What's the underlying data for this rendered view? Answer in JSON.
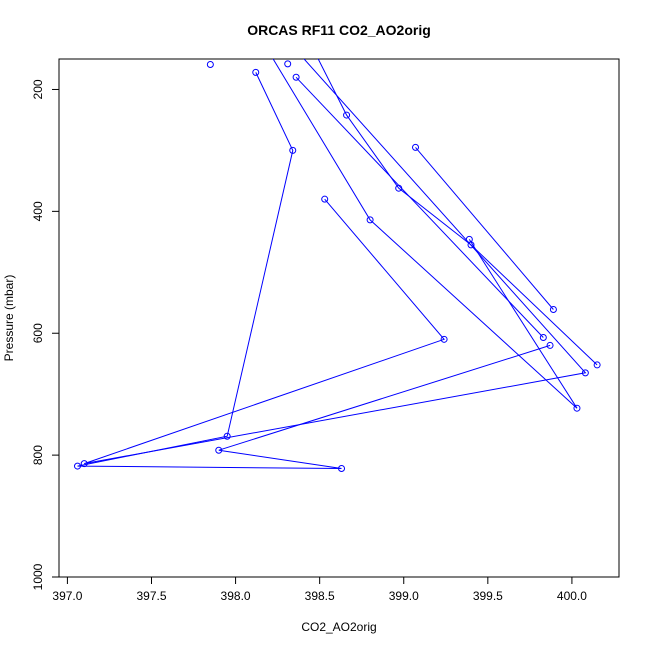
{
  "chart_data": {
    "type": "line",
    "title": "ORCAS RF11 CO2_AO2orig",
    "xlabel": "CO2_AO2orig",
    "ylabel": "Pressure (mbar)",
    "xlim": [
      396.95,
      400.28
    ],
    "ylim": [
      1000,
      150
    ],
    "y_reversed": true,
    "x_ticks": [
      "397.0",
      "397.5",
      "398.0",
      "398.5",
      "399.0",
      "399.5",
      "400.0"
    ],
    "y_ticks": [
      "200",
      "400",
      "600",
      "800",
      "1000"
    ],
    "series_color": "#0000ff",
    "marker": "open-circle",
    "points": [
      [
        398.4,
        100
      ],
      [
        398.66,
        242
      ],
      [
        398.97,
        362
      ],
      [
        399.4,
        455
      ],
      [
        400.15,
        652
      ],
      [
        399.07,
        295
      ],
      [
        399.89,
        561
      ],
      [
        398.18,
        80
      ],
      [
        400.08,
        665
      ],
      [
        397.1,
        814
      ],
      [
        399.24,
        610
      ],
      [
        398.53,
        380
      ],
      [
        397.85,
        159
      ],
      [
        398.12,
        172
      ],
      [
        398.34,
        300
      ],
      [
        397.95,
        769
      ],
      [
        397.06,
        818
      ],
      [
        398.63,
        822
      ],
      [
        397.9,
        792
      ],
      [
        399.87,
        620
      ],
      [
        400.03,
        723
      ],
      [
        399.39,
        446
      ],
      [
        399.83,
        607
      ],
      [
        398.8,
        414
      ],
      [
        398.36,
        180
      ],
      [
        398.18,
        130
      ],
      [
        398.31,
        158
      ]
    ],
    "connections": [
      [
        0,
        1,
        2,
        3,
        4
      ],
      [
        5,
        6
      ],
      [
        7,
        8,
        9,
        10,
        11
      ],
      [
        13,
        14,
        15,
        16,
        17,
        18,
        19
      ],
      [
        20,
        21
      ],
      [
        24,
        22
      ],
      [
        25,
        23,
        20
      ]
    ]
  }
}
